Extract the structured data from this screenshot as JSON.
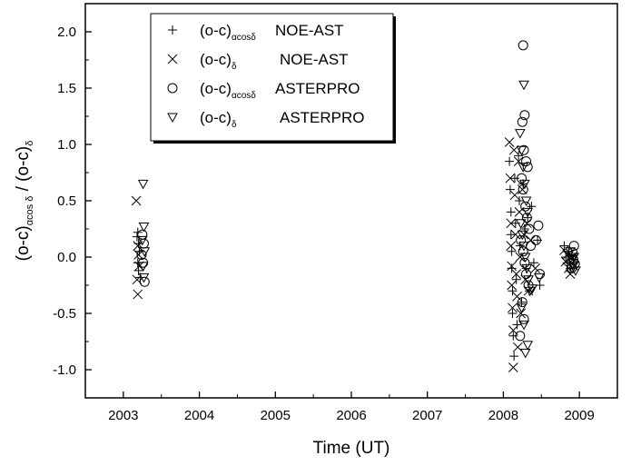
{
  "chart_data": {
    "type": "scatter",
    "xlabel": "Time (UT)",
    "ylabel": {
      "part1": "(o-c)",
      "part1_sub": "αcos δ",
      "part2": " / (o-c)",
      "part2_sub": "δ"
    },
    "xlim": [
      2002.5,
      2009.5
    ],
    "ylim": [
      -1.25,
      2.25
    ],
    "x_ticks": [
      2003,
      2004,
      2005,
      2006,
      2007,
      2008,
      2009
    ],
    "y_ticks": [
      -1.0,
      -0.5,
      0.0,
      0.5,
      1.0,
      1.5,
      2.0
    ],
    "x_tick_labels": [
      "2003",
      "2004",
      "2005",
      "2006",
      "2007",
      "2008",
      "2009"
    ],
    "y_tick_labels": [
      "-1.0",
      "-0.5",
      "0.0",
      "0.5",
      "1.0",
      "1.5",
      "2.0"
    ],
    "grid": false,
    "legend_position": "top-left",
    "series": [
      {
        "name": "(o-c)αcosδ NOE-AST",
        "legend": {
          "main": "(o-c)",
          "sub": "αcosδ",
          "rest": "NOE-AST"
        },
        "marker": "plus",
        "points": [
          [
            2003.19,
            0.22
          ],
          [
            2003.2,
            0.12
          ],
          [
            2003.21,
            0.05
          ],
          [
            2003.19,
            -0.05
          ],
          [
            2003.2,
            -0.12
          ],
          [
            2003.22,
            -0.18
          ],
          [
            2003.18,
            0.18
          ],
          [
            2008.08,
            0.85
          ],
          [
            2008.09,
            0.6
          ],
          [
            2008.1,
            0.4
          ],
          [
            2008.1,
            0.2
          ],
          [
            2008.11,
            0.05
          ],
          [
            2008.11,
            -0.1
          ],
          [
            2008.12,
            -0.3
          ],
          [
            2008.12,
            -0.5
          ],
          [
            2008.13,
            -0.7
          ],
          [
            2008.14,
            -0.88
          ],
          [
            2008.15,
            0.7
          ],
          [
            2008.16,
            0.3
          ],
          [
            2008.17,
            -0.2
          ],
          [
            2008.18,
            -0.6
          ],
          [
            2008.2,
            0.9
          ],
          [
            2008.21,
            0.5
          ],
          [
            2008.22,
            0.1
          ],
          [
            2008.24,
            -0.4
          ],
          [
            2008.26,
            0.65
          ],
          [
            2008.28,
            0.25
          ],
          [
            2008.3,
            -0.1
          ],
          [
            2008.32,
            0.35
          ],
          [
            2008.34,
            -0.3
          ],
          [
            2008.37,
            0.45
          ],
          [
            2008.4,
            -0.05
          ],
          [
            2008.45,
            0.15
          ],
          [
            2008.48,
            -0.25
          ],
          [
            2008.8,
            0.1
          ],
          [
            2008.82,
            0.0
          ],
          [
            2008.84,
            -0.05
          ],
          [
            2008.86,
            0.05
          ],
          [
            2008.88,
            -0.1
          ],
          [
            2008.9,
            0.02
          ],
          [
            2008.92,
            -0.02
          ]
        ]
      },
      {
        "name": "(o-c)δ NOE-AST",
        "legend": {
          "main": "(o-c)",
          "sub": "δ",
          "rest": "NOE-AST"
        },
        "marker": "cross",
        "points": [
          [
            2003.17,
            0.5
          ],
          [
            2003.19,
            0.1
          ],
          [
            2003.2,
            0.02
          ],
          [
            2003.18,
            -0.2
          ],
          [
            2003.19,
            -0.33
          ],
          [
            2003.21,
            -0.08
          ],
          [
            2008.08,
            1.02
          ],
          [
            2008.09,
            0.7
          ],
          [
            2008.1,
            0.3
          ],
          [
            2008.1,
            0.1
          ],
          [
            2008.11,
            -0.08
          ],
          [
            2008.11,
            -0.25
          ],
          [
            2008.12,
            -0.45
          ],
          [
            2008.13,
            -0.65
          ],
          [
            2008.13,
            -0.98
          ],
          [
            2008.14,
            0.95
          ],
          [
            2008.15,
            0.55
          ],
          [
            2008.16,
            0.2
          ],
          [
            2008.17,
            -0.15
          ],
          [
            2008.18,
            -0.35
          ],
          [
            2008.19,
            -0.8
          ],
          [
            2008.2,
            0.85
          ],
          [
            2008.21,
            0.4
          ],
          [
            2008.22,
            0.0
          ],
          [
            2008.23,
            -0.5
          ],
          [
            2008.25,
            0.6
          ],
          [
            2008.27,
            0.2
          ],
          [
            2008.29,
            -0.2
          ],
          [
            2008.31,
            0.3
          ],
          [
            2008.33,
            -0.3
          ],
          [
            2008.36,
            0.15
          ],
          [
            2008.42,
            -0.1
          ],
          [
            2008.8,
            0.06
          ],
          [
            2008.82,
            -0.04
          ],
          [
            2008.84,
            0.02
          ],
          [
            2008.86,
            -0.1
          ],
          [
            2008.88,
            -0.15
          ],
          [
            2008.9,
            0.0
          ],
          [
            2008.93,
            -0.08
          ]
        ]
      },
      {
        "name": "(o-c)αcosδ ASTERPRO",
        "legend": {
          "main": "(o-c)",
          "sub": "αcosδ",
          "rest": "ASTERPRO"
        },
        "marker": "circle",
        "points": [
          [
            2003.25,
            0.2
          ],
          [
            2003.27,
            0.12
          ],
          [
            2003.26,
            -0.05
          ],
          [
            2003.28,
            -0.22
          ],
          [
            2003.24,
            0.02
          ],
          [
            2008.26,
            1.88
          ],
          [
            2008.28,
            1.26
          ],
          [
            2008.25,
            1.2
          ],
          [
            2008.27,
            0.95
          ],
          [
            2008.3,
            0.85
          ],
          [
            2008.32,
            0.8
          ],
          [
            2008.24,
            0.7
          ],
          [
            2008.26,
            0.6
          ],
          [
            2008.29,
            0.45
          ],
          [
            2008.31,
            0.35
          ],
          [
            2008.34,
            0.25
          ],
          [
            2008.23,
            0.15
          ],
          [
            2008.26,
            0.05
          ],
          [
            2008.28,
            -0.05
          ],
          [
            2008.3,
            -0.15
          ],
          [
            2008.33,
            -0.25
          ],
          [
            2008.25,
            -0.4
          ],
          [
            2008.27,
            -0.55
          ],
          [
            2008.22,
            -0.7
          ],
          [
            2008.36,
            0.1
          ],
          [
            2008.46,
            0.28
          ],
          [
            2008.43,
            0.15
          ],
          [
            2008.48,
            -0.15
          ],
          [
            2008.93,
            0.1
          ],
          [
            2008.91,
            0.04
          ],
          [
            2008.92,
            -0.02
          ],
          [
            2008.94,
            -0.06
          ],
          [
            2008.9,
            -0.1
          ]
        ]
      },
      {
        "name": "(o-c)δ ASTERPRO",
        "legend": {
          "main": "(o-c)",
          "sub": "δ",
          "rest": "ASTERPRO"
        },
        "marker": "triangle-down",
        "points": [
          [
            2003.26,
            0.65
          ],
          [
            2003.27,
            0.27
          ],
          [
            2003.25,
            0.15
          ],
          [
            2003.28,
            0.05
          ],
          [
            2003.26,
            -0.08
          ],
          [
            2003.27,
            -0.18
          ],
          [
            2008.27,
            1.53
          ],
          [
            2008.22,
            1.1
          ],
          [
            2008.24,
            0.95
          ],
          [
            2008.26,
            0.8
          ],
          [
            2008.28,
            0.65
          ],
          [
            2008.3,
            0.5
          ],
          [
            2008.32,
            0.4
          ],
          [
            2008.23,
            0.3
          ],
          [
            2008.25,
            0.2
          ],
          [
            2008.27,
            0.1
          ],
          [
            2008.29,
            0.0
          ],
          [
            2008.31,
            -0.1
          ],
          [
            2008.33,
            -0.2
          ],
          [
            2008.35,
            -0.3
          ],
          [
            2008.24,
            -0.45
          ],
          [
            2008.27,
            -0.6
          ],
          [
            2008.32,
            -0.78
          ],
          [
            2008.29,
            -0.85
          ],
          [
            2008.38,
            -0.28
          ],
          [
            2008.47,
            -0.18
          ],
          [
            2008.88,
            0.05
          ],
          [
            2008.9,
            -0.02
          ],
          [
            2008.92,
            -0.08
          ],
          [
            2008.95,
            -0.12
          ],
          [
            2008.93,
            0.0
          ]
        ]
      }
    ]
  }
}
